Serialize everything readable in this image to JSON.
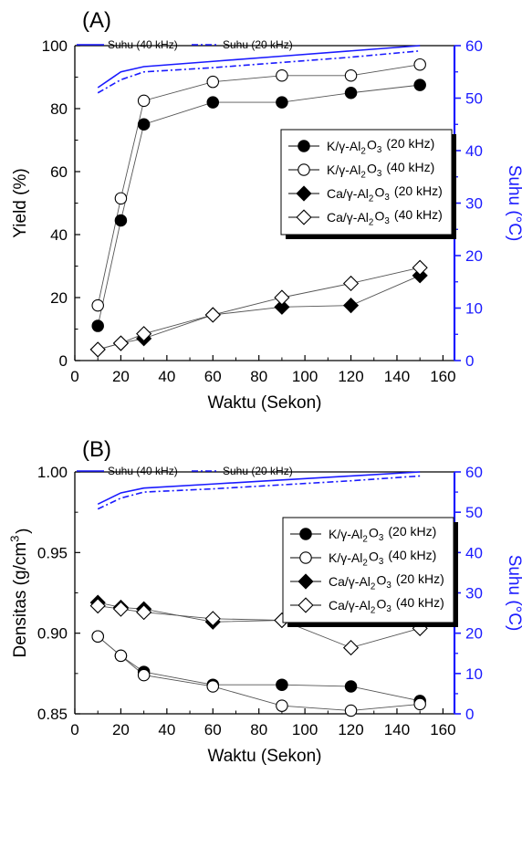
{
  "colors": {
    "temperature_axis": "#1a1aff",
    "data_marker": "#000000",
    "marker_fill_open": "#ffffff"
  },
  "chart_data": [
    {
      "type": "line",
      "panel_label": "(A)",
      "xlabel": "Waktu (Sekon)",
      "ylabel": "Yield (%)",
      "y2label": "Suhu (°C)",
      "xlim": [
        0,
        165
      ],
      "ylim": [
        0,
        100
      ],
      "y2lim": [
        0,
        60
      ],
      "xticks": [
        0,
        20,
        40,
        60,
        80,
        100,
        120,
        140,
        160
      ],
      "yticks": [
        0,
        20,
        40,
        60,
        80,
        100
      ],
      "y2ticks": [
        0,
        10,
        20,
        30,
        40,
        50,
        60
      ],
      "grid": false,
      "legend_placement": "center-right",
      "x": [
        10,
        20,
        30,
        60,
        90,
        120,
        150
      ],
      "series": [
        {
          "name": "K/γ-Al₂O₃ (20 kHz)",
          "marker": "circle",
          "filled": true,
          "values": [
            11,
            44.5,
            75,
            82,
            82,
            85,
            87.5
          ]
        },
        {
          "name": "K/γ-Al₂O₃ (40 kHz)",
          "marker": "circle",
          "filled": false,
          "values": [
            17.5,
            51.5,
            82.5,
            88.5,
            90.5,
            90.5,
            94
          ]
        },
        {
          "name": "Ca/γ-Al₂O₃ (20 kHz)",
          "marker": "diamond",
          "filled": true,
          "values": [
            3.5,
            5.5,
            7,
            14.5,
            17,
            17.5,
            27
          ]
        },
        {
          "name": "Ca/γ-Al₂O₃ (40 kHz)",
          "marker": "diamond",
          "filled": false,
          "values": [
            3.5,
            5.5,
            8.5,
            14.5,
            20,
            24.5,
            29.5
          ]
        }
      ],
      "temperature_series": [
        {
          "name": "Suhu (40 kHz)",
          "style": "solid",
          "x": [
            10,
            20,
            30,
            60,
            90,
            120,
            150
          ],
          "values": [
            52,
            55,
            56,
            57,
            58,
            59,
            60
          ]
        },
        {
          "name": "Suhu (20 kHz)",
          "style": "dash-dot",
          "x": [
            10,
            20,
            30,
            60,
            90,
            120,
            150
          ],
          "values": [
            51,
            53.5,
            55,
            55.8,
            56.8,
            57.8,
            59
          ]
        }
      ]
    },
    {
      "type": "line",
      "panel_label": "(B)",
      "xlabel": "Waktu (Sekon)",
      "ylabel": "Densitas (g/cm³)",
      "y2label": "Suhu (°C)",
      "xlim": [
        0,
        165
      ],
      "ylim": [
        0.85,
        1.0
      ],
      "y2lim": [
        0,
        60
      ],
      "xticks": [
        0,
        20,
        40,
        60,
        80,
        100,
        120,
        140,
        160
      ],
      "yticks": [
        "0.85",
        "0.90",
        "0.95",
        "1.00"
      ],
      "y2ticks": [
        0,
        10,
        20,
        30,
        40,
        50,
        60
      ],
      "grid": false,
      "legend_placement": "center-right",
      "x": [
        10,
        20,
        30,
        60,
        90,
        120,
        150
      ],
      "series": [
        {
          "name": "K/γ-Al₂O₃ (20 kHz)",
          "marker": "circle",
          "filled": true,
          "values": [
            0.898,
            0.886,
            0.876,
            0.868,
            0.868,
            0.867,
            0.858
          ]
        },
        {
          "name": "K/γ-Al₂O₃ (40 kHz)",
          "marker": "circle",
          "filled": false,
          "values": [
            0.898,
            0.886,
            0.874,
            0.867,
            0.855,
            0.852,
            0.856
          ]
        },
        {
          "name": "Ca/γ-Al₂O₃ (20 kHz)",
          "marker": "diamond",
          "filled": true,
          "values": [
            0.919,
            0.916,
            0.915,
            0.907,
            0.908,
            0.912,
            0.906
          ]
        },
        {
          "name": "Ca/γ-Al₂O₃ (40 kHz)",
          "marker": "diamond",
          "filled": false,
          "values": [
            0.917,
            0.915,
            0.913,
            0.909,
            0.908,
            0.891,
            0.903
          ]
        }
      ],
      "temperature_series": [
        {
          "name": "Suhu (40 kHz)",
          "style": "solid",
          "x": [
            10,
            20,
            30,
            60,
            90,
            120,
            150
          ],
          "values": [
            52,
            54.8,
            56,
            57,
            58,
            59,
            60
          ]
        },
        {
          "name": "Suhu (20 kHz)",
          "style": "dash-dot",
          "x": [
            10,
            20,
            30,
            60,
            90,
            120,
            150
          ],
          "values": [
            50.8,
            53.5,
            55,
            55.8,
            56.8,
            57.8,
            59
          ]
        }
      ]
    }
  ]
}
